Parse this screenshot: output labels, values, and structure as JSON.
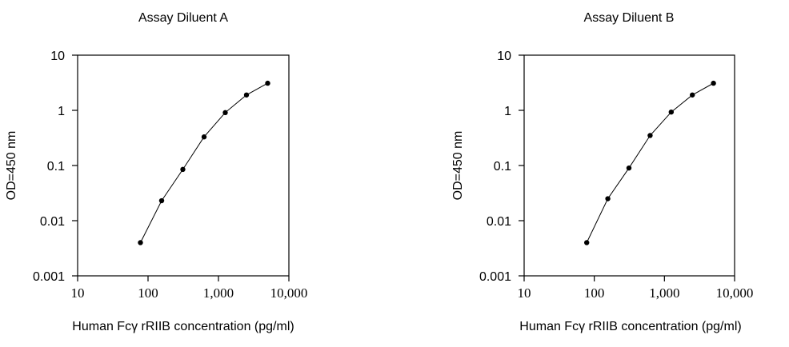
{
  "chart_data": [
    {
      "type": "line",
      "title": "Assay Diluent A",
      "xlabel": "Human Fcγ rRIIB concentration (pg/ml)",
      "ylabel": "OD=450 nm",
      "xscale": "log",
      "yscale": "log",
      "xlim": [
        10,
        10000
      ],
      "ylim": [
        0.001,
        10
      ],
      "x_tick_labels": [
        "10",
        "100",
        "1,000",
        "10,000"
      ],
      "y_tick_labels": [
        "0.001",
        "0.01",
        "0.1",
        "1",
        "10"
      ],
      "grid": false,
      "marker": "filled-circle",
      "x": [
        78,
        156,
        312,
        625,
        1250,
        2500,
        5000
      ],
      "y": [
        0.004,
        0.023,
        0.085,
        0.33,
        0.91,
        1.9,
        3.1
      ]
    },
    {
      "type": "line",
      "title": "Assay Diluent B",
      "xlabel": "Human Fcγ rRIIB concentration (pg/ml)",
      "ylabel": "OD=450 nm",
      "xscale": "log",
      "yscale": "log",
      "xlim": [
        10,
        10000
      ],
      "ylim": [
        0.001,
        10
      ],
      "x_tick_labels": [
        "10",
        "100",
        "1,000",
        "10,000"
      ],
      "y_tick_labels": [
        "0.001",
        "0.01",
        "0.1",
        "1",
        "10"
      ],
      "grid": false,
      "marker": "filled-circle",
      "x": [
        78,
        156,
        312,
        625,
        1250,
        2500,
        5000
      ],
      "y": [
        0.004,
        0.025,
        0.09,
        0.35,
        0.93,
        1.9,
        3.1
      ]
    }
  ]
}
